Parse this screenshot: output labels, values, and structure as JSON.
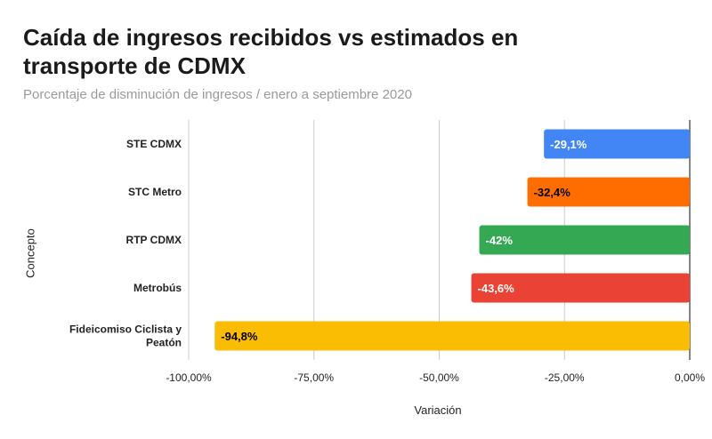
{
  "header": {
    "title": "Caída de ingresos recibidos vs estimados en transporte de CDMX",
    "subtitle": "Porcentaje de disminución de ingresos / enero a septiembre 2020"
  },
  "chart_data": {
    "type": "bar",
    "orientation": "horizontal",
    "title": "Caída de ingresos recibidos vs estimados en transporte de CDMX",
    "subtitle": "Porcentaje de disminución de ingresos / enero a septiembre 2020",
    "xlabel": "Variación",
    "ylabel": "Concepto",
    "xlim": [
      -100,
      0
    ],
    "x_ticks": [
      -100,
      -75,
      -50,
      -25,
      0
    ],
    "x_tick_labels": [
      "-100,00%",
      "-75,00%",
      "-50,00%",
      "-25,00%",
      "0,00%"
    ],
    "grid": true,
    "categories": [
      [
        "STE CDMX"
      ],
      [
        "STC Metro"
      ],
      [
        "RTP CDMX"
      ],
      [
        "Metrobús"
      ],
      [
        "Fideicomiso Ciclista y",
        "Peatón"
      ]
    ],
    "values": [
      -29.1,
      -32.4,
      -42,
      -43.6,
      -94.8
    ],
    "data_labels": [
      "-29,1%",
      "-32,4%",
      "-42%",
      "-43,6%",
      "-94,8%"
    ],
    "colors": [
      "#4285f4",
      "#ff6d00",
      "#34a853",
      "#ea4335",
      "#fbbc04"
    ],
    "label_colors": [
      "#ffffff",
      "#000000",
      "#ffffff",
      "#ffffff",
      "#000000"
    ]
  }
}
